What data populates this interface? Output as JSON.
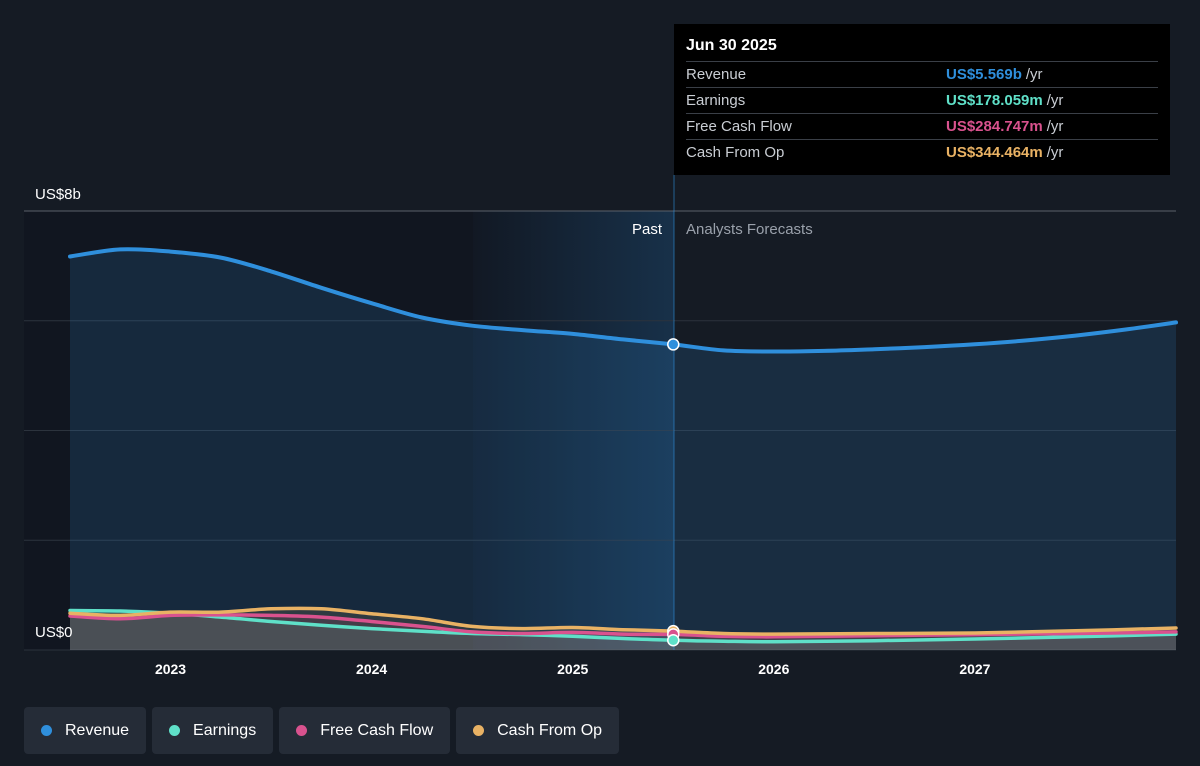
{
  "chart_data": {
    "type": "area",
    "y_axis": {
      "top_label": "US$8b",
      "bottom_label": "US$0",
      "ylim": [
        0,
        8
      ]
    },
    "x_ticks": [
      "2023",
      "2024",
      "2025",
      "2026",
      "2027"
    ],
    "xlim": [
      2022.5,
      2028.0
    ],
    "divider": {
      "x": 2025.5,
      "past_label": "Past",
      "forecast_label": "Analysts Forecasts"
    },
    "series": [
      {
        "name": "Revenue",
        "color": "#2f8fdc",
        "x": [
          2022.5,
          2022.75,
          2023.0,
          2023.25,
          2023.5,
          2023.75,
          2024.0,
          2024.25,
          2024.5,
          2024.75,
          2025.0,
          2025.25,
          2025.5,
          2025.75,
          2026.0,
          2026.25,
          2026.5,
          2026.75,
          2027.0,
          2027.25,
          2027.5,
          2027.75,
          2028.0
        ],
        "values": [
          7.17,
          7.3,
          7.26,
          7.15,
          6.9,
          6.6,
          6.32,
          6.06,
          5.91,
          5.83,
          5.76,
          5.66,
          5.569,
          5.46,
          5.44,
          5.45,
          5.48,
          5.52,
          5.57,
          5.64,
          5.73,
          5.84,
          5.97
        ]
      },
      {
        "name": "Earnings",
        "color": "#5fe0c8",
        "x": [
          2022.5,
          2022.75,
          2023.0,
          2023.25,
          2023.5,
          2023.75,
          2024.0,
          2024.25,
          2024.5,
          2024.75,
          2025.0,
          2025.25,
          2025.5,
          2025.75,
          2026.0,
          2026.5,
          2027.0,
          2027.5,
          2028.0
        ],
        "values": [
          0.72,
          0.71,
          0.67,
          0.6,
          0.52,
          0.45,
          0.39,
          0.34,
          0.3,
          0.28,
          0.25,
          0.21,
          0.178,
          0.16,
          0.15,
          0.17,
          0.2,
          0.24,
          0.29
        ]
      },
      {
        "name": "Free Cash Flow",
        "color": "#d9528e",
        "x": [
          2022.5,
          2022.75,
          2023.0,
          2023.25,
          2023.5,
          2023.75,
          2024.0,
          2024.25,
          2024.5,
          2024.75,
          2025.0,
          2025.25,
          2025.5,
          2025.75,
          2026.0,
          2026.5,
          2027.0,
          2027.5,
          2028.0
        ],
        "values": [
          0.62,
          0.57,
          0.63,
          0.64,
          0.63,
          0.6,
          0.52,
          0.43,
          0.33,
          0.3,
          0.32,
          0.29,
          0.285,
          0.25,
          0.24,
          0.26,
          0.28,
          0.3,
          0.33
        ]
      },
      {
        "name": "Cash From Op",
        "color": "#e9b264",
        "x": [
          2022.5,
          2022.75,
          2023.0,
          2023.25,
          2023.5,
          2023.75,
          2024.0,
          2024.25,
          2024.5,
          2024.75,
          2025.0,
          2025.25,
          2025.5,
          2025.75,
          2026.0,
          2026.5,
          2027.0,
          2027.5,
          2028.0
        ],
        "values": [
          0.67,
          0.63,
          0.69,
          0.69,
          0.75,
          0.75,
          0.66,
          0.57,
          0.43,
          0.39,
          0.41,
          0.37,
          0.344,
          0.3,
          0.29,
          0.3,
          0.31,
          0.35,
          0.4
        ]
      }
    ],
    "grid": true,
    "legend_position": "bottom-left"
  },
  "tooltip": {
    "date": "Jun 30 2025",
    "rows": [
      {
        "label": "Revenue",
        "value": "US$5.569b",
        "unit": "/yr",
        "color": "#2f8fdc"
      },
      {
        "label": "Earnings",
        "value": "US$178.059m",
        "unit": "/yr",
        "color": "#5fe0c8"
      },
      {
        "label": "Free Cash Flow",
        "value": "US$284.747m",
        "unit": "/yr",
        "color": "#d9528e"
      },
      {
        "label": "Cash From Op",
        "value": "US$344.464m",
        "unit": "/yr",
        "color": "#e9b264"
      }
    ]
  },
  "legend": [
    {
      "label": "Revenue",
      "color": "#2f8fdc"
    },
    {
      "label": "Earnings",
      "color": "#5fe0c8"
    },
    {
      "label": "Free Cash Flow",
      "color": "#d9528e"
    },
    {
      "label": "Cash From Op",
      "color": "#e9b264"
    }
  ]
}
